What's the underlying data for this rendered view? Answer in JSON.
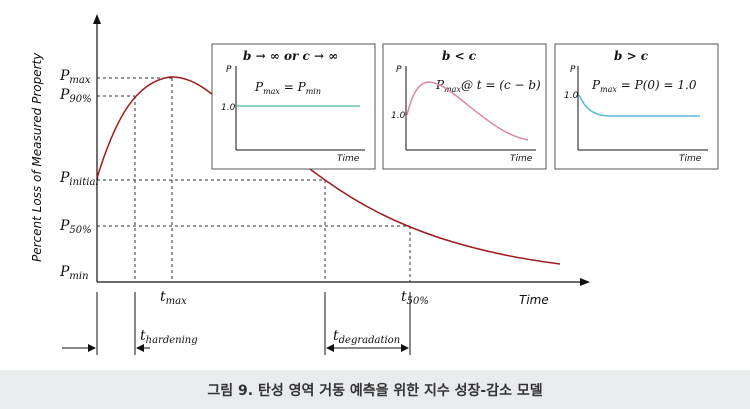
{
  "y_axis_title": "Percent Loss of Measured Property",
  "x_axis_title": "Time",
  "y_labels": {
    "p_max": "P",
    "p_max_sub": "max",
    "p_90": "P",
    "p_90_sub": "90%",
    "p_initial": "P",
    "p_initial_sub": "initial",
    "p_50": "P",
    "p_50_sub": "50%",
    "p_min": "P",
    "p_min_sub": "min"
  },
  "x_labels": {
    "t_max": "t",
    "t_max_sub": "max",
    "t_50": "t",
    "t_50_sub": "50%"
  },
  "intervals": {
    "hardening": "t",
    "hardening_sub": "hardening",
    "degradation": "t",
    "degradation_sub": "degradation"
  },
  "insets": [
    {
      "title": "b → ∞ or c → ∞",
      "axis_y": "P",
      "axis_x": "Time",
      "tick": "1.0",
      "equation": "P",
      "equation_sub": "max",
      "equation_rest": " = P",
      "equation_rest_sub": "min",
      "curve_color": "#6fc4b4"
    },
    {
      "title": "b < c",
      "axis_y": "P",
      "axis_x": "Time",
      "tick": "1.0",
      "equation": "P",
      "equation_sub": "max",
      "equation_rest": "@ t = (c − b)",
      "curve_color": "#d98a9a"
    },
    {
      "title": "b > c",
      "axis_y": "P",
      "axis_x": "Time",
      "tick": "1.0",
      "equation": "P",
      "equation_sub": "max",
      "equation_rest": " = P(0) = 1.0",
      "curve_color": "#5bb8d6"
    }
  ],
  "caption": "그림 9. 탄성 영역 거동 예측을 위한 지수 성장-감소 모델",
  "colors": {
    "main_curve": "#9b1c1c",
    "guide": "#333333",
    "caption_bg": "#e9ebee"
  }
}
